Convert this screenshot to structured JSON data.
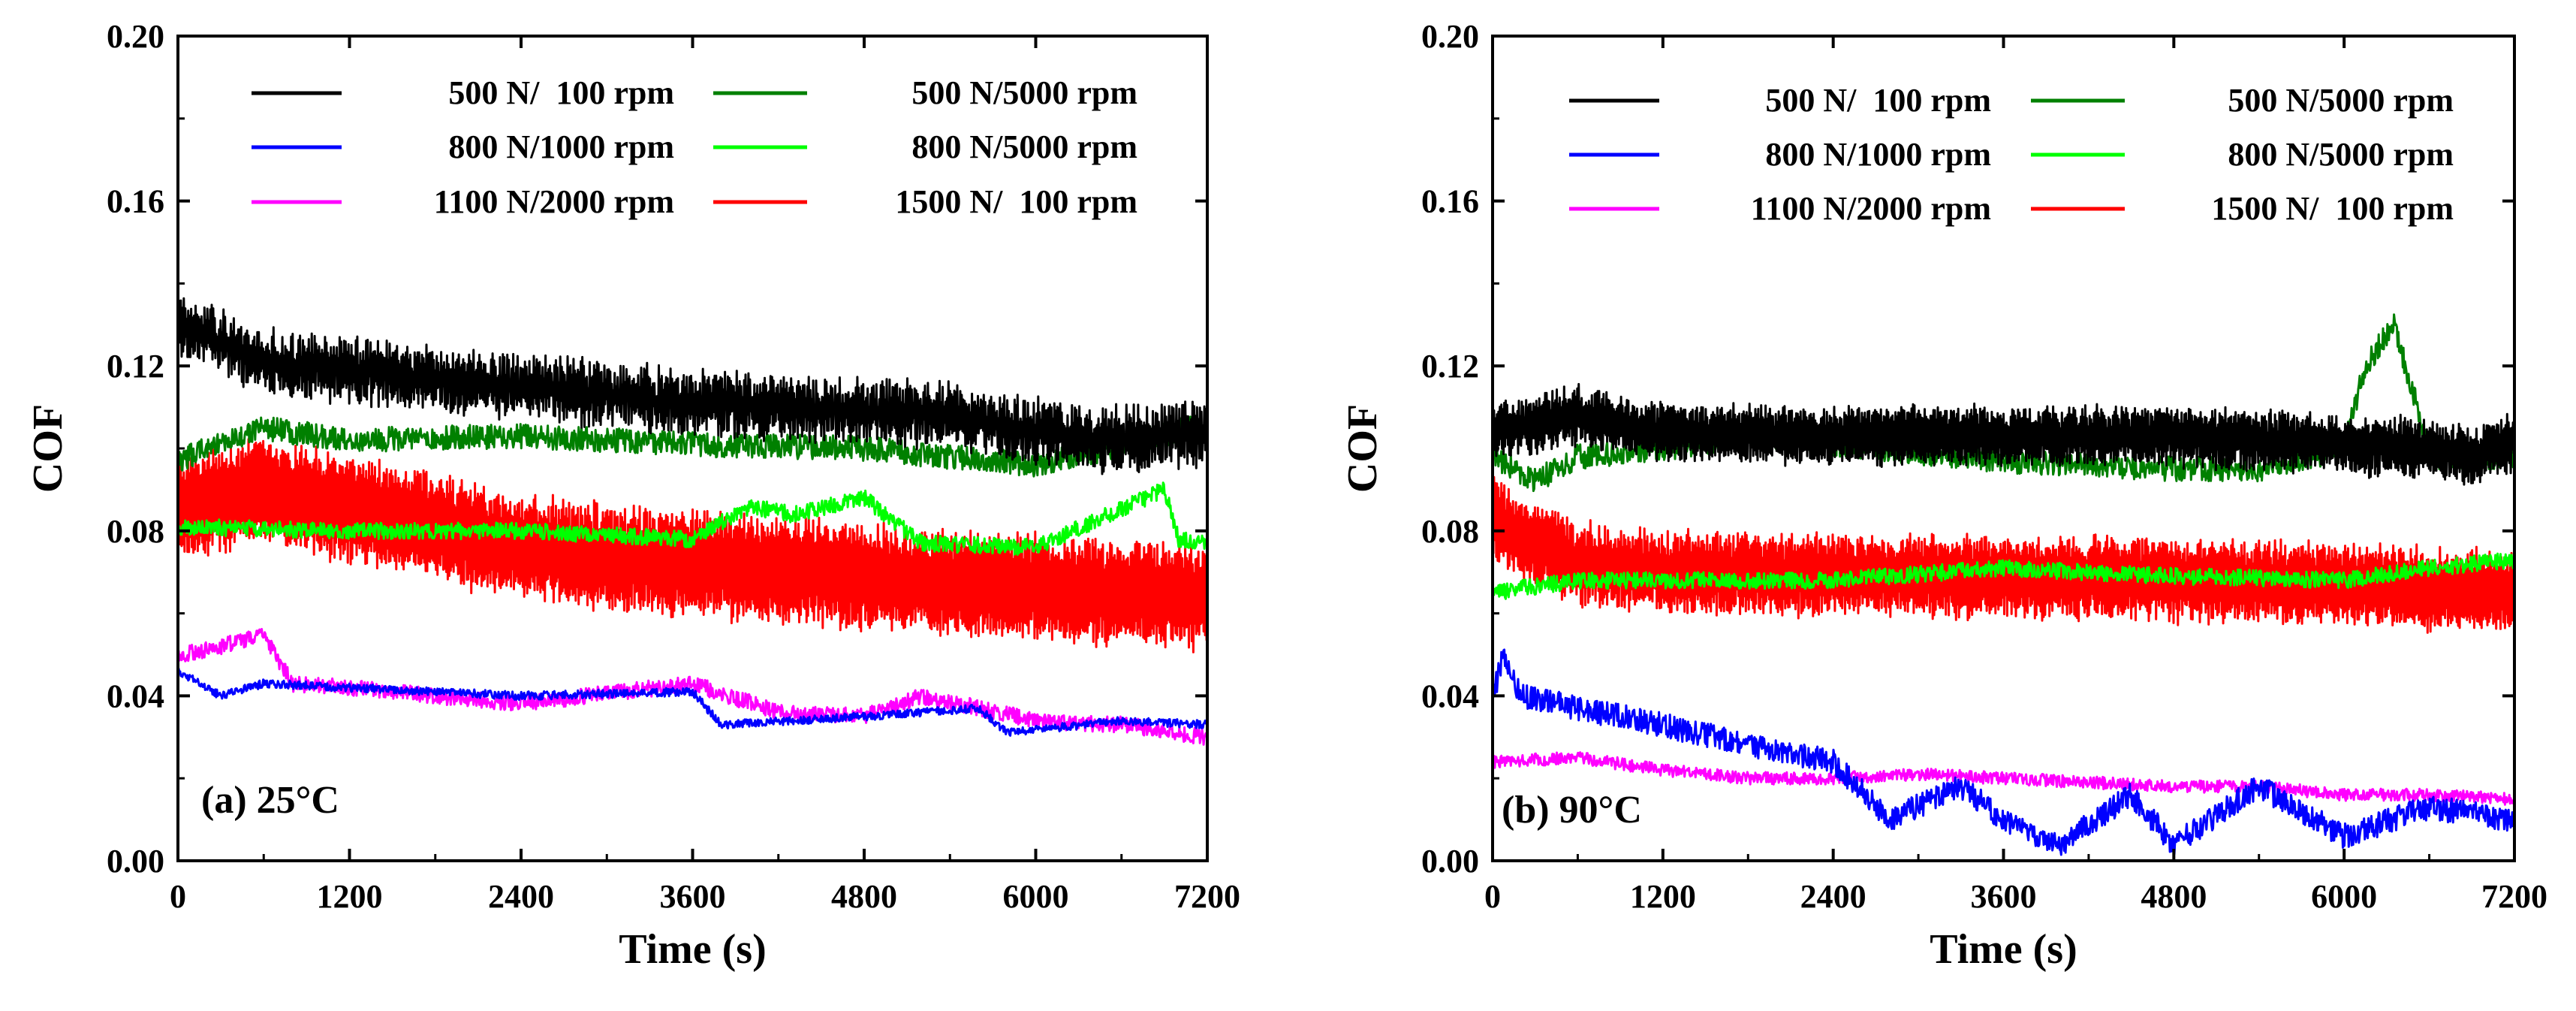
{
  "chart_data": [
    {
      "type": "line",
      "panel_label": "(a) 25°C",
      "xlabel": "Time (s)",
      "ylabel": "COF",
      "xlim": [
        0,
        7200
      ],
      "ylim": [
        0,
        0.2
      ],
      "xticks": [
        "0",
        "1200",
        "2400",
        "3600",
        "4800",
        "6000",
        "7200"
      ],
      "yticks": [
        "0.00",
        "0.04",
        "0.08",
        "0.12",
        "0.16",
        "0.20"
      ],
      "legend_position": "top",
      "series": [
        {
          "name": "500 N/  100 rpm",
          "color": "#000000",
          "noise": 0.003,
          "osc": 0.006,
          "x": [
            0,
            600,
            1200,
            2400,
            3600,
            4800,
            5400,
            6000,
            6600,
            7200
          ],
          "y": [
            0.13,
            0.121,
            0.119,
            0.115,
            0.111,
            0.109,
            0.108,
            0.104,
            0.102,
            0.104
          ]
        },
        {
          "name": "800 N/1000 rpm",
          "color": "#0000ff",
          "noise": 0.001,
          "osc": 0,
          "x": [
            0,
            150,
            300,
            600,
            1200,
            2400,
            3600,
            3800,
            4800,
            5600,
            5800,
            6600,
            7200
          ],
          "y": [
            0.046,
            0.043,
            0.04,
            0.043,
            0.042,
            0.04,
            0.041,
            0.033,
            0.035,
            0.037,
            0.031,
            0.034,
            0.033
          ]
        },
        {
          "name": "1100 N/2000 rpm",
          "color": "#ff00ff",
          "noise": 0.002,
          "osc": 0,
          "x": [
            0,
            300,
            600,
            800,
            1200,
            2400,
            3600,
            4200,
            4800,
            5200,
            6000,
            6600,
            7200
          ],
          "y": [
            0.05,
            0.052,
            0.055,
            0.043,
            0.042,
            0.038,
            0.043,
            0.036,
            0.035,
            0.04,
            0.034,
            0.033,
            0.03
          ]
        },
        {
          "name": "500 N/5000 rpm",
          "color": "#008000",
          "noise": 0.003,
          "osc": 0,
          "x": [
            0,
            600,
            1200,
            2400,
            3600,
            4800,
            6000,
            6500,
            7200
          ],
          "y": [
            0.097,
            0.105,
            0.102,
            0.103,
            0.101,
            0.1,
            0.096,
            0.1,
            0.106
          ]
        },
        {
          "name": "800 N/5000 rpm",
          "color": "#00ff00",
          "noise": 0.002,
          "osc": 0,
          "x": [
            0,
            1200,
            2400,
            3600,
            4000,
            4300,
            4800,
            5200,
            6000,
            6900,
            7000,
            7200
          ],
          "y": [
            0.081,
            0.08,
            0.08,
            0.078,
            0.086,
            0.084,
            0.088,
            0.077,
            0.076,
            0.09,
            0.078,
            0.077
          ]
        },
        {
          "name": "1500 N/  100 rpm",
          "color": "#ff0000",
          "noise": 0.002,
          "osc": 0.012,
          "x": [
            0,
            600,
            1200,
            2400,
            3600,
            4800,
            6000,
            7200
          ],
          "y": [
            0.085,
            0.09,
            0.085,
            0.076,
            0.072,
            0.069,
            0.066,
            0.064
          ]
        }
      ]
    },
    {
      "type": "line",
      "panel_label": "(b) 90°C",
      "xlabel": "Time (s)",
      "ylabel": "COF",
      "xlim": [
        0,
        7200
      ],
      "ylim": [
        0,
        0.2
      ],
      "xticks": [
        "0",
        "1200",
        "2400",
        "3600",
        "4800",
        "6000",
        "7200"
      ],
      "yticks": [
        "0.00",
        "0.04",
        "0.08",
        "0.12",
        "0.16",
        "0.20"
      ],
      "legend_position": "top",
      "series": [
        {
          "name": "500 N/  100 rpm",
          "color": "#000000",
          "noise": 0.002,
          "osc": 0.006,
          "x": [
            0,
            600,
            1000,
            1200,
            2400,
            3600,
            4800,
            6000,
            6600,
            6900,
            7200
          ],
          "y": [
            0.104,
            0.108,
            0.105,
            0.104,
            0.103,
            0.103,
            0.103,
            0.101,
            0.1,
            0.098,
            0.102
          ]
        },
        {
          "name": "800 N/1000 rpm",
          "color": "#0000ff",
          "noise": 0.003,
          "osc": 0,
          "x": [
            0,
            80,
            200,
            600,
            1200,
            1800,
            2400,
            2800,
            3300,
            3600,
            4000,
            4500,
            4800,
            5400,
            6000,
            6600,
            7200
          ],
          "y": [
            0.04,
            0.05,
            0.04,
            0.037,
            0.033,
            0.028,
            0.024,
            0.01,
            0.018,
            0.01,
            0.004,
            0.016,
            0.004,
            0.018,
            0.006,
            0.013,
            0.01
          ]
        },
        {
          "name": "1100 N/2000 rpm",
          "color": "#ff00ff",
          "noise": 0.0015,
          "osc": 0,
          "x": [
            0,
            600,
            1200,
            1800,
            2400,
            3000,
            3600,
            4200,
            4800,
            5400,
            6000,
            6600,
            7200
          ],
          "y": [
            0.024,
            0.025,
            0.022,
            0.02,
            0.02,
            0.021,
            0.02,
            0.019,
            0.018,
            0.018,
            0.016,
            0.016,
            0.015
          ]
        },
        {
          "name": "500 N/5000 rpm",
          "color": "#008000",
          "noise": 0.003,
          "osc": 0,
          "x": [
            0,
            300,
            600,
            1200,
            1800,
            2400,
            3600,
            4800,
            5400,
            6000,
            6150,
            6350,
            6500,
            6600,
            7200
          ],
          "y": [
            0.098,
            0.092,
            0.098,
            0.1,
            0.103,
            0.101,
            0.097,
            0.095,
            0.095,
            0.1,
            0.12,
            0.13,
            0.112,
            0.098,
            0.098
          ]
        },
        {
          "name": "800 N/5000 rpm",
          "color": "#00ff00",
          "noise": 0.002,
          "osc": 0,
          "x": [
            0,
            600,
            1200,
            2400,
            3600,
            4800,
            6000,
            6600,
            7200
          ],
          "y": [
            0.065,
            0.068,
            0.068,
            0.068,
            0.071,
            0.069,
            0.068,
            0.071,
            0.073
          ]
        },
        {
          "name": "1500 N/  100 rpm",
          "color": "#ff0000",
          "noise": 0.002,
          "osc": 0.009,
          "x": [
            0,
            200,
            600,
            1200,
            2400,
            3600,
            4800,
            6000,
            7200
          ],
          "y": [
            0.084,
            0.078,
            0.072,
            0.07,
            0.069,
            0.069,
            0.068,
            0.067,
            0.065
          ]
        }
      ]
    }
  ]
}
